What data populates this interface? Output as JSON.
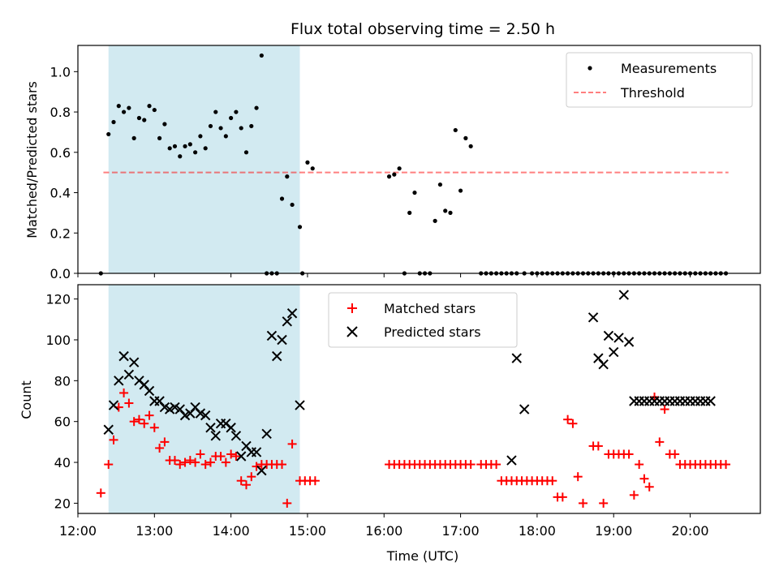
{
  "colors": {
    "span": "#add8e6",
    "threshold": "#ff0000",
    "matched": "#ff0000",
    "predicted": "#000000",
    "measurements": "#000000"
  },
  "chart_data": [
    {
      "type": "scatter",
      "title": "Flux total observing time = 2.50 h",
      "xlabel": "",
      "ylabel": "Matched/Predicted stars",
      "xlim": [
        "12:00",
        "20:55"
      ],
      "ylim": [
        0,
        1.13
      ],
      "yticks": [
        0.0,
        0.2,
        0.4,
        0.6,
        0.8,
        1.0
      ],
      "ytick_labels": [
        "0.0",
        "0.2",
        "0.4",
        "0.6",
        "0.8",
        "1.0"
      ],
      "grid": false,
      "legend": "top-right",
      "shaded_span": [
        "12:24",
        "14:54"
      ],
      "threshold": {
        "name": "Threshold",
        "y": 0.5,
        "x": [
          "12:20",
          "20:30"
        ]
      },
      "series": [
        {
          "name": "Measurements",
          "x": [
            "12:18",
            "12:24",
            "12:28",
            "12:32",
            "12:36",
            "12:40",
            "12:44",
            "12:48",
            "12:52",
            "12:56",
            "13:00",
            "13:04",
            "13:08",
            "13:12",
            "13:16",
            "13:20",
            "13:24",
            "13:28",
            "13:32",
            "13:36",
            "13:40",
            "13:44",
            "13:48",
            "13:52",
            "13:56",
            "14:00",
            "14:04",
            "14:08",
            "14:12",
            "14:16",
            "14:20",
            "14:24",
            "14:28",
            "14:32",
            "14:36",
            "14:40",
            "14:44",
            "14:48",
            "14:54",
            "14:56",
            "15:00",
            "15:04",
            "16:04",
            "16:08",
            "16:12",
            "16:16",
            "16:20",
            "16:24",
            "16:28",
            "16:32",
            "16:36",
            "16:40",
            "16:44",
            "16:48",
            "16:52",
            "16:56",
            "17:00",
            "17:04",
            "17:08",
            "17:16",
            "17:20",
            "17:24",
            "17:28",
            "17:32",
            "17:36",
            "17:40",
            "17:44",
            "17:50",
            "17:56",
            "18:00",
            "18:04",
            "18:08",
            "18:12",
            "18:16",
            "18:20",
            "18:24",
            "18:28",
            "18:32",
            "18:36",
            "18:40",
            "18:44",
            "18:48",
            "18:52",
            "18:56",
            "19:00",
            "19:04",
            "19:08",
            "19:12",
            "19:16",
            "19:20",
            "19:24",
            "19:28",
            "19:32",
            "19:36",
            "19:40",
            "19:44",
            "19:48",
            "19:52",
            "19:56",
            "20:00",
            "20:04",
            "20:08",
            "20:12",
            "20:16",
            "20:20",
            "20:24",
            "20:28"
          ],
          "y": [
            0.0,
            0.69,
            0.75,
            0.83,
            0.8,
            0.82,
            0.67,
            0.77,
            0.76,
            0.83,
            0.81,
            0.67,
            0.74,
            0.62,
            0.63,
            0.58,
            0.63,
            0.64,
            0.6,
            0.68,
            0.62,
            0.73,
            0.8,
            0.72,
            0.68,
            0.77,
            0.8,
            0.72,
            0.6,
            0.73,
            0.82,
            1.08,
            0.0,
            0.0,
            0.0,
            0.37,
            0.48,
            0.34,
            0.23,
            0.0,
            0.55,
            0.52,
            0.48,
            0.49,
            0.52,
            0.0,
            0.3,
            0.4,
            0.0,
            0.0,
            0.0,
            0.26,
            0.44,
            0.31,
            0.3,
            0.71,
            0.41,
            0.67,
            0.63,
            0.0,
            0.0,
            0.0,
            0.0,
            0.0,
            0.0,
            0.0,
            0.0,
            0.0,
            0.0,
            0.0,
            0.0,
            0.0,
            0.0,
            0.0,
            0.0,
            0.0,
            0.0,
            0.0,
            0.0,
            0.0,
            0.0,
            0.0,
            0.0,
            0.0,
            0.0,
            0.0,
            0.0,
            0.0,
            0.0,
            0.0,
            0.0,
            0.0,
            0.0,
            0.0,
            0.0,
            0.0,
            0.0,
            0.0,
            0.0,
            0.0,
            0.0,
            0.0,
            0.0,
            0.0,
            0.0,
            0.0,
            0.0
          ]
        }
      ]
    },
    {
      "type": "scatter",
      "title": "",
      "xlabel": "Time (UTC)",
      "ylabel": "Count",
      "xlim": [
        "12:00",
        "20:55"
      ],
      "ylim": [
        15,
        127
      ],
      "xticks": [
        "12:00",
        "13:00",
        "14:00",
        "15:00",
        "16:00",
        "17:00",
        "18:00",
        "19:00",
        "20:00"
      ],
      "yticks": [
        20,
        40,
        60,
        80,
        100,
        120
      ],
      "ytick_labels": [
        "20",
        "40",
        "60",
        "80",
        "100",
        "120"
      ],
      "grid": false,
      "legend": "top-center",
      "shaded_span": [
        "12:24",
        "14:54"
      ],
      "series": [
        {
          "name": "Matched stars",
          "marker": "plus",
          "x": [
            "12:18",
            "12:24",
            "12:28",
            "12:32",
            "12:36",
            "12:40",
            "12:44",
            "12:48",
            "12:52",
            "12:56",
            "13:00",
            "13:04",
            "13:08",
            "13:12",
            "13:16",
            "13:20",
            "13:24",
            "13:28",
            "13:32",
            "13:36",
            "13:40",
            "13:44",
            "13:48",
            "13:52",
            "13:56",
            "14:00",
            "14:04",
            "14:08",
            "14:12",
            "14:16",
            "14:20",
            "14:24",
            "14:28",
            "14:32",
            "14:36",
            "14:40",
            "14:44",
            "14:48",
            "14:54",
            "14:58",
            "15:02",
            "15:06",
            "16:04",
            "16:08",
            "16:12",
            "16:16",
            "16:20",
            "16:24",
            "16:28",
            "16:32",
            "16:36",
            "16:40",
            "16:44",
            "16:48",
            "16:52",
            "16:56",
            "17:00",
            "17:04",
            "17:08",
            "17:16",
            "17:20",
            "17:24",
            "17:28",
            "17:32",
            "17:36",
            "17:40",
            "17:44",
            "17:48",
            "17:52",
            "17:56",
            "18:00",
            "18:04",
            "18:08",
            "18:12",
            "18:16",
            "18:20",
            "18:24",
            "18:28",
            "18:32",
            "18:36",
            "18:44",
            "18:48",
            "18:52",
            "18:56",
            "19:00",
            "19:04",
            "19:08",
            "19:12",
            "19:16",
            "19:20",
            "19:24",
            "19:28",
            "19:32",
            "19:36",
            "19:40",
            "19:44",
            "19:48",
            "19:52",
            "19:56",
            "20:00",
            "20:04",
            "20:08",
            "20:12",
            "20:16",
            "20:20",
            "20:24",
            "20:28"
          ],
          "y": [
            25,
            39,
            51,
            67,
            74,
            69,
            60,
            61,
            59,
            63,
            57,
            47,
            50,
            41,
            41,
            39,
            40,
            41,
            40,
            44,
            39,
            40,
            43,
            43,
            40,
            44,
            43,
            31,
            29,
            33,
            38,
            39,
            39,
            39,
            39,
            39,
            20,
            49,
            31,
            31,
            31,
            31,
            39,
            39,
            39,
            39,
            39,
            39,
            39,
            39,
            39,
            39,
            39,
            39,
            39,
            39,
            39,
            39,
            39,
            39,
            39,
            39,
            39,
            31,
            31,
            31,
            31,
            31,
            31,
            31,
            31,
            31,
            31,
            31,
            23,
            23,
            61,
            59,
            33,
            20,
            48,
            48,
            20,
            44,
            44,
            44,
            44,
            44,
            24,
            39,
            32,
            28,
            72,
            50,
            66,
            44,
            44,
            39,
            39,
            39,
            39,
            39,
            39,
            39,
            39,
            39,
            39
          ]
        },
        {
          "name": "Predicted stars",
          "marker": "x",
          "x": [
            "12:24",
            "12:28",
            "12:32",
            "12:36",
            "12:40",
            "12:44",
            "12:48",
            "12:52",
            "12:56",
            "13:00",
            "13:04",
            "13:08",
            "13:12",
            "13:16",
            "13:20",
            "13:24",
            "13:28",
            "13:32",
            "13:36",
            "13:40",
            "13:44",
            "13:48",
            "13:52",
            "13:56",
            "14:00",
            "14:04",
            "14:08",
            "14:12",
            "14:16",
            "14:20",
            "14:24",
            "14:28",
            "14:32",
            "14:36",
            "14:40",
            "14:44",
            "14:48",
            "14:54",
            "17:40",
            "17:44",
            "17:50",
            "18:44",
            "18:48",
            "18:52",
            "18:56",
            "19:00",
            "19:04",
            "19:08",
            "19:12",
            "19:16",
            "19:20",
            "19:24",
            "19:28",
            "19:32",
            "19:36",
            "19:40",
            "19:44",
            "19:48",
            "19:52",
            "19:56",
            "20:00",
            "20:04",
            "20:08",
            "20:12",
            "20:16"
          ],
          "y": [
            56,
            68,
            80,
            92,
            83,
            89,
            80,
            78,
            75,
            70,
            70,
            67,
            66,
            67,
            66,
            63,
            64,
            67,
            64,
            63,
            57,
            53,
            59,
            59,
            57,
            53,
            43,
            48,
            45,
            45,
            36,
            54,
            102,
            92,
            100,
            109,
            113,
            68,
            41,
            91,
            66,
            111,
            91,
            88,
            102,
            94,
            101,
            122,
            99,
            70,
            70,
            70,
            70,
            70,
            70,
            70,
            70,
            70,
            70,
            70,
            70,
            70,
            70,
            70,
            70
          ]
        }
      ]
    }
  ]
}
